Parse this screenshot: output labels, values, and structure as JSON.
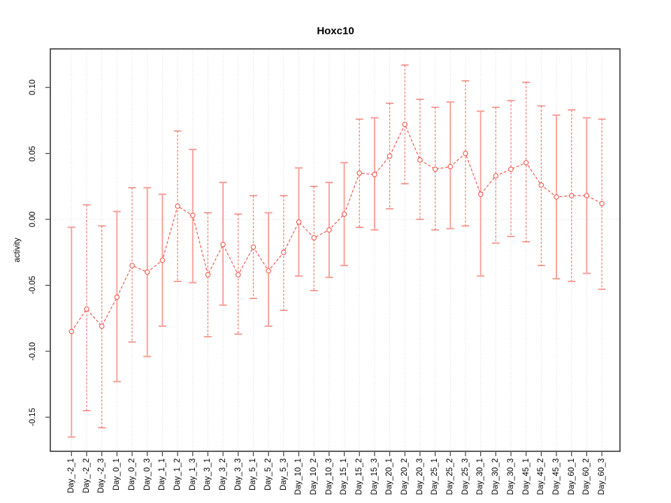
{
  "title": "Hoxc10",
  "chart_data": {
    "type": "scatter",
    "title": "Hoxc10",
    "xlabel": "",
    "ylabel": "activity",
    "legend": "none",
    "grid": "vertical dotted line at every category; horizontal dotted line at y=0",
    "marker": "open-circle",
    "line_style": "dashed",
    "ylim": [
      -0.176,
      0.129
    ],
    "yticks": [
      0.1,
      0.05,
      0.0,
      -0.05,
      -0.1,
      -0.15
    ],
    "ytick_labels": [
      "0.10",
      "0.05",
      "0.00",
      "-0.05",
      "-0.10",
      "-0.15"
    ],
    "categories": [
      "Day_-2_1",
      "Day_-2_2",
      "Day_-2_3",
      "Day_0_1",
      "Day_0_2",
      "Day_0_3",
      "Day_1_1",
      "Day_1_2",
      "Day_1_3",
      "Day_3_1",
      "Day_3_2",
      "Day_3_3",
      "Day_5_1",
      "Day_5_2",
      "Day_5_3",
      "Day_10_1",
      "Day_10_2",
      "Day_10_3",
      "Day_15_1",
      "Day_15_2",
      "Day_15_3",
      "Day_20_1",
      "Day_20_2",
      "Day_20_3",
      "Day_25_1",
      "Day_25_2",
      "Day_25_3",
      "Day_30_1",
      "Day_30_2",
      "Day_30_3",
      "Day_45_1",
      "Day_45_2",
      "Day_45_3",
      "Day_60_1",
      "Day_60_2",
      "Day_60_3"
    ],
    "series": [
      {
        "name": "activity",
        "values": [
          -0.085,
          -0.068,
          -0.081,
          -0.059,
          -0.035,
          -0.04,
          -0.031,
          0.01,
          0.003,
          -0.042,
          -0.019,
          -0.042,
          -0.021,
          -0.039,
          -0.025,
          -0.002,
          -0.014,
          -0.008,
          0.004,
          0.035,
          0.034,
          0.048,
          0.072,
          0.045,
          0.038,
          0.04,
          0.05,
          0.019,
          0.033,
          0.038,
          0.043,
          0.026,
          0.017,
          0.018,
          0.018,
          0.012
        ],
        "error_low": [
          -0.165,
          -0.145,
          -0.158,
          -0.123,
          -0.093,
          -0.104,
          -0.081,
          -0.047,
          -0.048,
          -0.089,
          -0.065,
          -0.087,
          -0.06,
          -0.081,
          -0.069,
          -0.043,
          -0.054,
          -0.044,
          -0.035,
          -0.006,
          -0.008,
          0.008,
          0.027,
          0.0,
          -0.008,
          -0.007,
          -0.005,
          -0.043,
          -0.018,
          -0.013,
          -0.017,
          -0.035,
          -0.045,
          -0.047,
          -0.041,
          -0.053
        ],
        "error_high": [
          -0.006,
          0.011,
          -0.005,
          0.006,
          0.024,
          0.024,
          0.019,
          0.067,
          0.053,
          0.005,
          0.028,
          0.004,
          0.018,
          0.005,
          0.018,
          0.039,
          0.025,
          0.028,
          0.043,
          0.076,
          0.077,
          0.088,
          0.117,
          0.091,
          0.085,
          0.089,
          0.105,
          0.082,
          0.085,
          0.09,
          0.104,
          0.086,
          0.079,
          0.083,
          0.077,
          0.076
        ],
        "bar_styles": [
          "solid",
          "dashed",
          "dashed",
          "solid",
          "dashed",
          "solid",
          "solid",
          "dashed",
          "solid",
          "dashed",
          "solid",
          "dashed",
          "dashed",
          "solid",
          "dashed",
          "solid",
          "dashed",
          "solid",
          "solid",
          "dashed",
          "solid",
          "dashed",
          "dashed",
          "dashed",
          "dashed",
          "solid",
          "dashed",
          "solid",
          "dashed",
          "dashed",
          "dashed",
          "dashed",
          "solid",
          "dashed",
          "solid",
          "dashed"
        ]
      }
    ],
    "colors": {
      "series": "#f1574d",
      "bar_solid": "#f7a39c",
      "bar_dashed": "#f07a6f",
      "grid": "#d4d4d4",
      "axis": "#404040",
      "text": "#000000",
      "background": "#ffffff"
    }
  }
}
